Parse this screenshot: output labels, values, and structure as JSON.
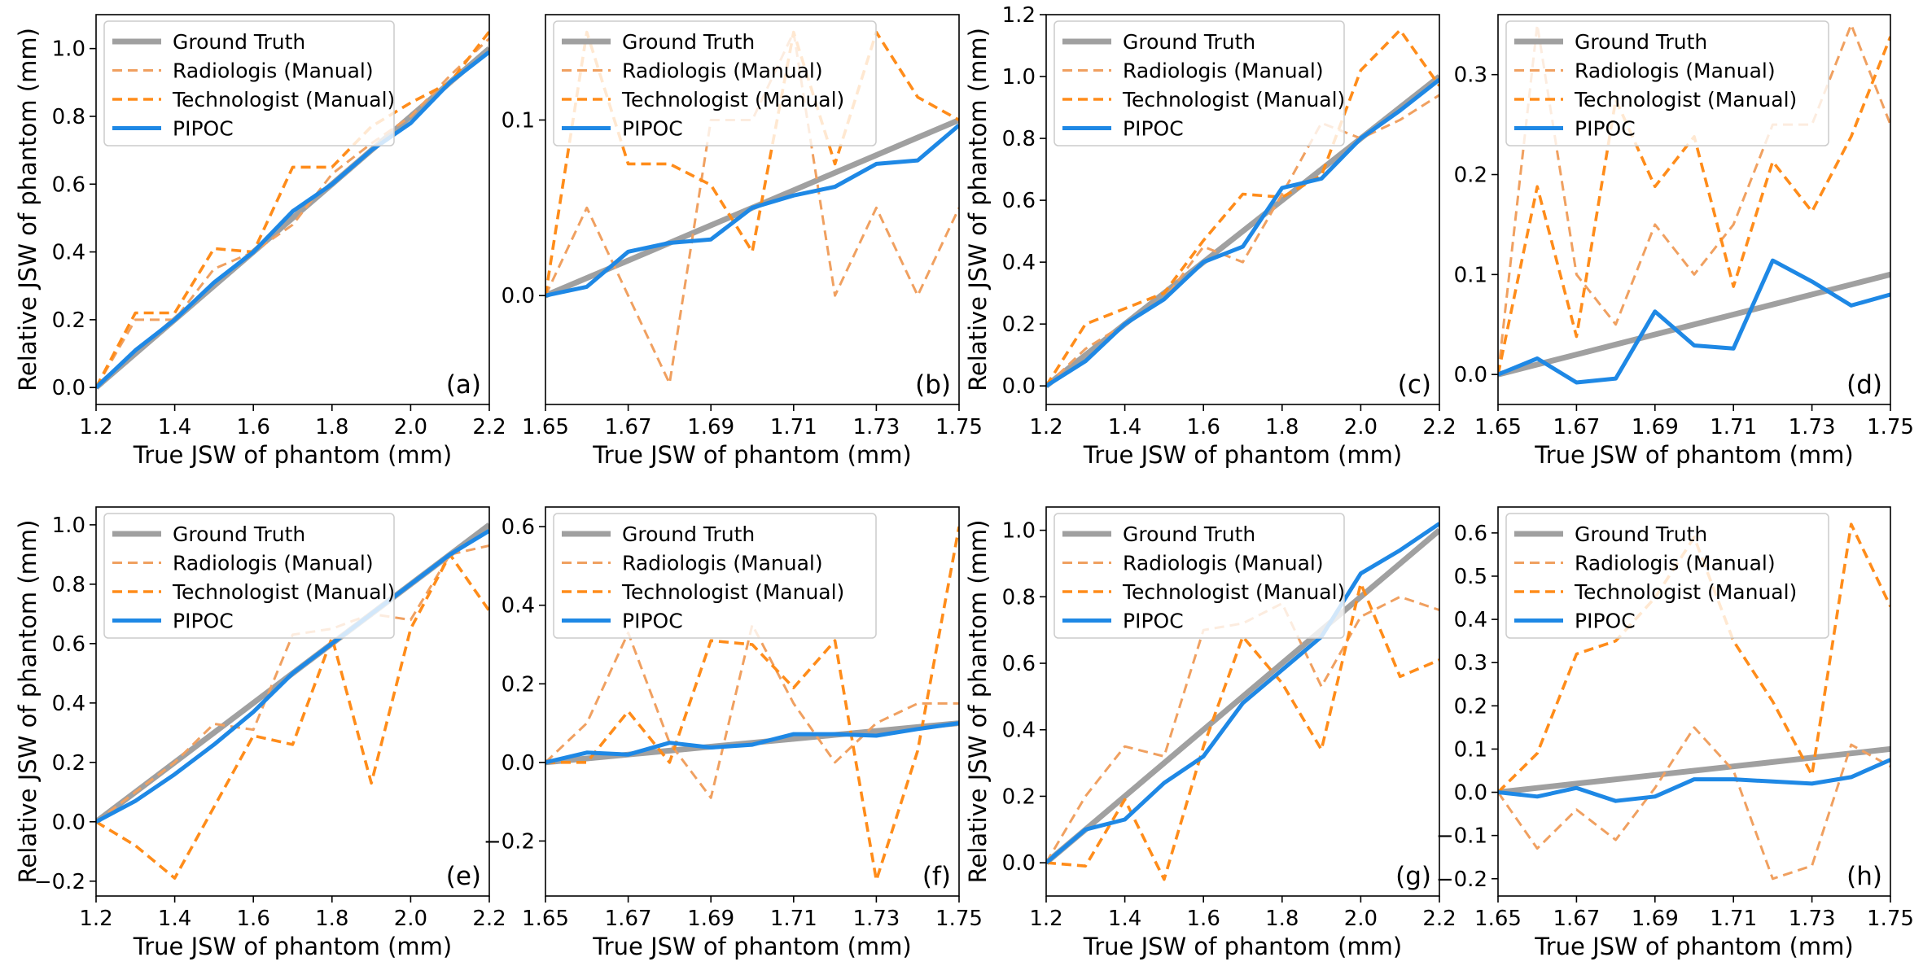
{
  "legend": [
    "Ground Truth",
    "Radiologis (Manual)",
    "Technologist (Manual)",
    "PIPOC"
  ],
  "colors": {
    "ground_truth": "#a0a0a0",
    "radiologist": "#f0a060",
    "technologist": "#ff8c1a",
    "pipoc": "#1e88e5"
  },
  "chart_data": [
    {
      "type": "line",
      "label": "(a)",
      "xlabel": "True JSW of phantom (mm)",
      "ylabel": "Relative JSW of phantom (mm)",
      "xlim": [
        1.2,
        2.2
      ],
      "ylim": [
        -0.05,
        1.1
      ],
      "xticks": [
        1.2,
        1.4,
        1.6,
        1.8,
        2.0,
        2.2
      ],
      "xtick_labels": [
        "1.2",
        "1.4",
        "1.6",
        "1.8",
        "2.0",
        "2.2"
      ],
      "yticks": [
        0,
        0.2,
        0.4,
        0.6,
        0.8,
        1.0
      ],
      "ytick_labels": [
        "0.0",
        "0.2",
        "0.4",
        "0.6",
        "0.8",
        "1.0"
      ],
      "x": [
        1.2,
        1.3,
        1.4,
        1.5,
        1.6,
        1.7,
        1.8,
        1.9,
        2.0,
        2.1,
        2.2
      ],
      "series": [
        {
          "name": "Ground Truth",
          "values": [
            0,
            0.1,
            0.2,
            0.3,
            0.4,
            0.5,
            0.6,
            0.7,
            0.8,
            0.9,
            1.0
          ]
        },
        {
          "name": "Radiologis (Manual)",
          "values": [
            0,
            0.2,
            0.2,
            0.35,
            0.4,
            0.48,
            0.63,
            0.72,
            0.8,
            0.92,
            1.03
          ]
        },
        {
          "name": "Technologist (Manual)",
          "values": [
            0,
            0.22,
            0.22,
            0.41,
            0.4,
            0.65,
            0.65,
            0.77,
            0.84,
            0.9,
            1.05
          ]
        },
        {
          "name": "PIPOC",
          "values": [
            0,
            0.11,
            0.2,
            0.31,
            0.4,
            0.52,
            0.6,
            0.7,
            0.78,
            0.9,
            0.99
          ]
        }
      ]
    },
    {
      "type": "line",
      "label": "(b)",
      "xlabel": "True JSW of phantom (mm)",
      "ylabel": "",
      "xlim": [
        1.65,
        1.75
      ],
      "ylim": [
        -0.062,
        0.16
      ],
      "xticks": [
        1.65,
        1.67,
        1.69,
        1.71,
        1.73,
        1.75
      ],
      "xtick_labels": [
        "1.65",
        "1.67",
        "1.69",
        "1.71",
        "1.73",
        "1.75"
      ],
      "yticks": [
        0,
        0.1
      ],
      "ytick_labels": [
        "0.0",
        "0.1"
      ],
      "x": [
        1.65,
        1.66,
        1.67,
        1.68,
        1.69,
        1.7,
        1.71,
        1.72,
        1.73,
        1.74,
        1.75
      ],
      "series": [
        {
          "name": "Ground Truth",
          "values": [
            0,
            0.01,
            0.02,
            0.03,
            0.04,
            0.05,
            0.06,
            0.07,
            0.08,
            0.09,
            0.1
          ]
        },
        {
          "name": "Radiologis (Manual)",
          "values": [
            0,
            0.05,
            0,
            -0.05,
            0.1,
            0.1,
            0.15,
            0,
            0.05,
            0,
            0.05
          ]
        },
        {
          "name": "Technologist (Manual)",
          "values": [
            0,
            0.15,
            0.075,
            0.075,
            0.063,
            0.025,
            0.15,
            0.075,
            0.15,
            0.113,
            0.1
          ]
        },
        {
          "name": "PIPOC",
          "values": [
            0,
            0.005,
            0.025,
            0.03,
            0.032,
            0.05,
            0.057,
            0.062,
            0.075,
            0.077,
            0.097
          ]
        }
      ]
    },
    {
      "type": "line",
      "label": "(c)",
      "xlabel": "True JSW of phantom (mm)",
      "ylabel": "Relative JSW of phantom (mm)",
      "xlim": [
        1.2,
        2.2
      ],
      "ylim": [
        -0.06,
        1.2
      ],
      "xticks": [
        1.2,
        1.4,
        1.6,
        1.8,
        2.0,
        2.2
      ],
      "xtick_labels": [
        "1.2",
        "1.4",
        "1.6",
        "1.8",
        "2.0",
        "2.2"
      ],
      "yticks": [
        0,
        0.2,
        0.4,
        0.6,
        0.8,
        1.0,
        1.2
      ],
      "ytick_labels": [
        "0.0",
        "0.2",
        "0.4",
        "0.6",
        "0.8",
        "1.0",
        "1.2"
      ],
      "x": [
        1.2,
        1.3,
        1.4,
        1.5,
        1.6,
        1.7,
        1.8,
        1.9,
        2.0,
        2.1,
        2.2
      ],
      "series": [
        {
          "name": "Ground Truth",
          "values": [
            0,
            0.1,
            0.2,
            0.3,
            0.4,
            0.5,
            0.6,
            0.7,
            0.8,
            0.9,
            1.0
          ]
        },
        {
          "name": "Radiologis (Manual)",
          "values": [
            0,
            0.12,
            0.2,
            0.28,
            0.45,
            0.4,
            0.62,
            0.85,
            0.8,
            0.86,
            0.94
          ]
        },
        {
          "name": "Technologist (Manual)",
          "values": [
            0,
            0.2,
            0.25,
            0.3,
            0.47,
            0.62,
            0.61,
            0.68,
            1.02,
            1.15,
            0.97
          ]
        },
        {
          "name": "PIPOC",
          "values": [
            0,
            0.08,
            0.2,
            0.28,
            0.4,
            0.45,
            0.64,
            0.67,
            0.8,
            0.89,
            0.99
          ]
        }
      ]
    },
    {
      "type": "line",
      "label": "(d)",
      "xlabel": "True JSW of phantom (mm)",
      "ylabel": "",
      "xlim": [
        1.65,
        1.75
      ],
      "ylim": [
        -0.03,
        0.36
      ],
      "xticks": [
        1.65,
        1.67,
        1.69,
        1.71,
        1.73,
        1.75
      ],
      "xtick_labels": [
        "1.65",
        "1.67",
        "1.69",
        "1.71",
        "1.73",
        "1.75"
      ],
      "yticks": [
        0,
        0.1,
        0.2,
        0.3
      ],
      "ytick_labels": [
        "0.0",
        "0.1",
        "0.2",
        "0.3"
      ],
      "x": [
        1.65,
        1.66,
        1.67,
        1.68,
        1.69,
        1.7,
        1.71,
        1.72,
        1.73,
        1.74,
        1.75
      ],
      "series": [
        {
          "name": "Ground Truth",
          "values": [
            0,
            0.01,
            0.02,
            0.03,
            0.04,
            0.05,
            0.06,
            0.07,
            0.08,
            0.09,
            0.1
          ]
        },
        {
          "name": "Radiologis (Manual)",
          "values": [
            0,
            0.35,
            0.1,
            0.05,
            0.15,
            0.1,
            0.15,
            0.25,
            0.25,
            0.35,
            0.25
          ]
        },
        {
          "name": "Technologist (Manual)",
          "values": [
            0,
            0.188,
            0.038,
            0.275,
            0.188,
            0.238,
            0.088,
            0.213,
            0.163,
            0.238,
            0.338
          ]
        },
        {
          "name": "PIPOC",
          "values": [
            0,
            0.016,
            -0.008,
            -0.004,
            0.063,
            0.029,
            0.026,
            0.114,
            0.093,
            0.069,
            0.08
          ]
        }
      ]
    },
    {
      "type": "line",
      "label": "(e)",
      "xlabel": "True JSW of phantom (mm)",
      "ylabel": "Relative JSW of phantom (mm)",
      "xlim": [
        1.2,
        2.2
      ],
      "ylim": [
        -0.25,
        1.06
      ],
      "xticks": [
        1.2,
        1.4,
        1.6,
        1.8,
        2.0,
        2.2
      ],
      "xtick_labels": [
        "1.2",
        "1.4",
        "1.6",
        "1.8",
        "2.0",
        "2.2"
      ],
      "yticks": [
        -0.2,
        0,
        0.2,
        0.4,
        0.6,
        0.8,
        1.0
      ],
      "ytick_labels": [
        "−0.2",
        "0.0",
        "0.2",
        "0.4",
        "0.6",
        "0.8",
        "1.0"
      ],
      "x": [
        1.2,
        1.3,
        1.4,
        1.5,
        1.6,
        1.7,
        1.8,
        1.9,
        2.0,
        2.1,
        2.2
      ],
      "series": [
        {
          "name": "Ground Truth",
          "values": [
            0,
            0.1,
            0.2,
            0.3,
            0.4,
            0.5,
            0.6,
            0.7,
            0.8,
            0.9,
            1.0
          ]
        },
        {
          "name": "Radiologis (Manual)",
          "values": [
            0,
            0.1,
            0.2,
            0.33,
            0.31,
            0.63,
            0.65,
            0.7,
            0.68,
            0.9,
            0.93
          ]
        },
        {
          "name": "Technologist (Manual)",
          "values": [
            0,
            -0.08,
            -0.19,
            0.05,
            0.29,
            0.26,
            0.62,
            0.13,
            0.65,
            0.9,
            0.71
          ]
        },
        {
          "name": "PIPOC",
          "values": [
            0,
            0.07,
            0.16,
            0.26,
            0.37,
            0.5,
            0.6,
            0.7,
            0.8,
            0.9,
            0.98
          ]
        }
      ]
    },
    {
      "type": "line",
      "label": "(f)",
      "xlabel": "True JSW of phantom (mm)",
      "ylabel": "",
      "xlim": [
        1.65,
        1.75
      ],
      "ylim": [
        -0.34,
        0.65
      ],
      "xticks": [
        1.65,
        1.67,
        1.69,
        1.71,
        1.73,
        1.75
      ],
      "xtick_labels": [
        "1.65",
        "1.67",
        "1.69",
        "1.71",
        "1.73",
        "1.75"
      ],
      "yticks": [
        -0.2,
        0,
        0.2,
        0.4,
        0.6
      ],
      "ytick_labels": [
        "−0.2",
        "0.0",
        "0.2",
        "0.4",
        "0.6"
      ],
      "x": [
        1.65,
        1.66,
        1.67,
        1.68,
        1.69,
        1.7,
        1.71,
        1.72,
        1.73,
        1.74,
        1.75
      ],
      "series": [
        {
          "name": "Ground Truth",
          "values": [
            0,
            0.01,
            0.02,
            0.03,
            0.04,
            0.05,
            0.06,
            0.07,
            0.08,
            0.09,
            0.1
          ]
        },
        {
          "name": "Radiologis (Manual)",
          "values": [
            0,
            0.1,
            0.33,
            0.05,
            -0.09,
            0.35,
            0.15,
            0,
            0.1,
            0.15,
            0.15
          ]
        },
        {
          "name": "Technologist (Manual)",
          "values": [
            0,
            0,
            0.13,
            0,
            0.31,
            0.3,
            0.19,
            0.31,
            -0.3,
            0.03,
            0.6
          ]
        },
        {
          "name": "PIPOC",
          "values": [
            0,
            0.025,
            0.02,
            0.05,
            0.038,
            0.045,
            0.072,
            0.072,
            0.068,
            0.085,
            0.1
          ]
        }
      ]
    },
    {
      "type": "line",
      "label": "(g)",
      "xlabel": "True JSW of phantom (mm)",
      "ylabel": "Relative JSW of phantom (mm)",
      "xlim": [
        1.2,
        2.2
      ],
      "ylim": [
        -0.1,
        1.07
      ],
      "xticks": [
        1.2,
        1.4,
        1.6,
        1.8,
        2.0,
        2.2
      ],
      "xtick_labels": [
        "1.2",
        "1.4",
        "1.6",
        "1.8",
        "2.0",
        "2.2"
      ],
      "yticks": [
        0,
        0.2,
        0.4,
        0.6,
        0.8,
        1.0
      ],
      "ytick_labels": [
        "0.0",
        "0.2",
        "0.4",
        "0.6",
        "0.8",
        "1.0"
      ],
      "x": [
        1.2,
        1.3,
        1.4,
        1.5,
        1.6,
        1.7,
        1.8,
        1.9,
        2.0,
        2.1,
        2.2
      ],
      "series": [
        {
          "name": "Ground Truth",
          "values": [
            0,
            0.1,
            0.2,
            0.3,
            0.4,
            0.5,
            0.6,
            0.7,
            0.8,
            0.9,
            1.0
          ]
        },
        {
          "name": "Radiologis (Manual)",
          "values": [
            0,
            0.2,
            0.35,
            0.32,
            0.7,
            0.72,
            0.78,
            0.53,
            0.74,
            0.8,
            0.76
          ]
        },
        {
          "name": "Technologist (Manual)",
          "values": [
            0,
            -0.01,
            0.19,
            -0.05,
            0.35,
            0.68,
            0.54,
            0.34,
            0.84,
            0.56,
            0.61
          ]
        },
        {
          "name": "PIPOC",
          "values": [
            0,
            0.1,
            0.13,
            0.24,
            0.32,
            0.48,
            0.58,
            0.68,
            0.87,
            0.94,
            1.02
          ]
        }
      ]
    },
    {
      "type": "line",
      "label": "(h)",
      "xlabel": "True JSW of phantom (mm)",
      "ylabel": "",
      "xlim": [
        1.65,
        1.75
      ],
      "ylim": [
        -0.24,
        0.66
      ],
      "xticks": [
        1.65,
        1.67,
        1.69,
        1.71,
        1.73,
        1.75
      ],
      "xtick_labels": [
        "1.65",
        "1.67",
        "1.69",
        "1.71",
        "1.73",
        "1.75"
      ],
      "yticks": [
        -0.2,
        -0.1,
        0,
        0.1,
        0.2,
        0.3,
        0.4,
        0.5,
        0.6
      ],
      "ytick_labels": [
        "−0.2",
        "−0.1",
        "0.0",
        "0.1",
        "0.2",
        "0.3",
        "0.4",
        "0.5",
        "0.6"
      ],
      "x": [
        1.65,
        1.66,
        1.67,
        1.68,
        1.69,
        1.7,
        1.71,
        1.72,
        1.73,
        1.74,
        1.75
      ],
      "series": [
        {
          "name": "Ground Truth",
          "values": [
            0,
            0.01,
            0.02,
            0.03,
            0.04,
            0.05,
            0.06,
            0.07,
            0.08,
            0.09,
            0.1
          ]
        },
        {
          "name": "Radiologis (Manual)",
          "values": [
            0,
            -0.13,
            -0.04,
            -0.11,
            0.01,
            0.15,
            0.05,
            -0.2,
            -0.17,
            0.11,
            0.06
          ]
        },
        {
          "name": "Technologist (Manual)",
          "values": [
            0,
            0.09,
            0.32,
            0.35,
            0.45,
            0.59,
            0.35,
            0.21,
            0.04,
            0.62,
            0.43
          ]
        },
        {
          "name": "PIPOC",
          "values": [
            0,
            -0.01,
            0.01,
            -0.02,
            -0.01,
            0.03,
            0.03,
            0.025,
            0.02,
            0.035,
            0.075
          ]
        }
      ]
    }
  ]
}
